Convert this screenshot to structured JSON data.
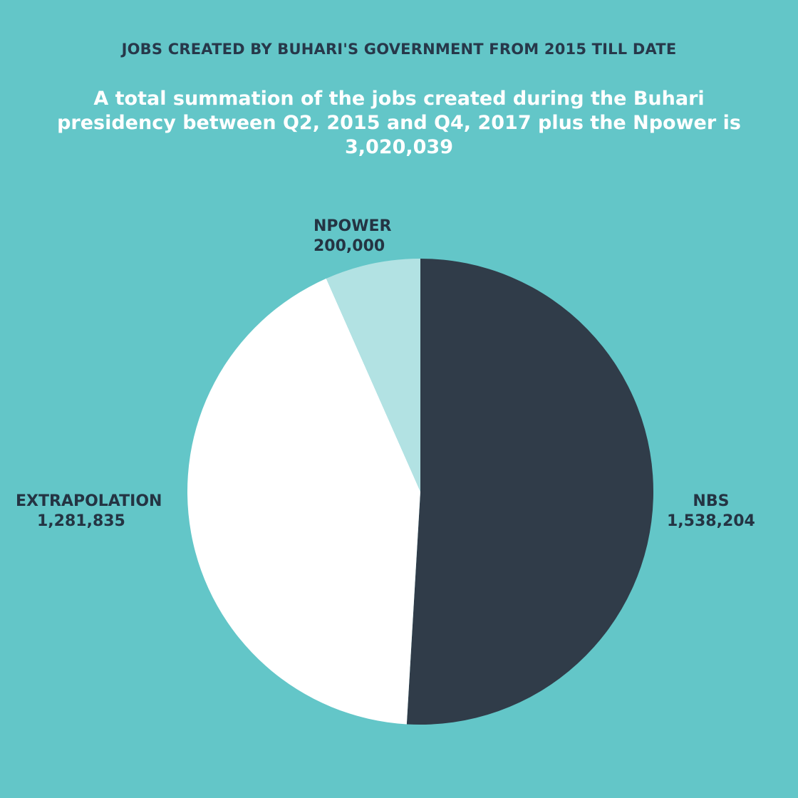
{
  "header": {
    "title": "JOBS CREATED BY BUHARI'S GOVERNMENT FROM 2015 TILL DATE",
    "subtitle": "A total summation of the jobs created during the Buhari presidency between Q2, 2015 and Q4, 2017 plus the Npower is 3,020,039"
  },
  "labels": {
    "npower": {
      "name": "NPOWER",
      "value": "200,000"
    },
    "extrapolation": {
      "name": "EXTRAPOLATION",
      "value": "1,281,835"
    },
    "nbs": {
      "name": "NBS",
      "value": "1,538,204"
    }
  },
  "colors": {
    "background": "#63c6c8",
    "nbs": "#303c49",
    "extrapolation": "#ffffff",
    "npower": "#b2e2e3",
    "label_text": "#243443"
  },
  "chart_data": {
    "type": "pie",
    "title": "JOBS CREATED BY BUHARI'S GOVERNMENT FROM 2015 TILL DATE",
    "subtitle": "A total summation of the jobs created during the Buhari presidency between Q2, 2015 and Q4, 2017 plus the Npower is 3,020,039",
    "total": 3020039,
    "categories": [
      "NBS",
      "EXTRAPOLATION",
      "NPOWER"
    ],
    "values": [
      1538204,
      1281835,
      200000
    ],
    "colors": [
      "#303c49",
      "#ffffff",
      "#b2e2e3"
    ],
    "start_angle": "12 o'clock, clockwise",
    "legend": "none (direct labels)"
  }
}
